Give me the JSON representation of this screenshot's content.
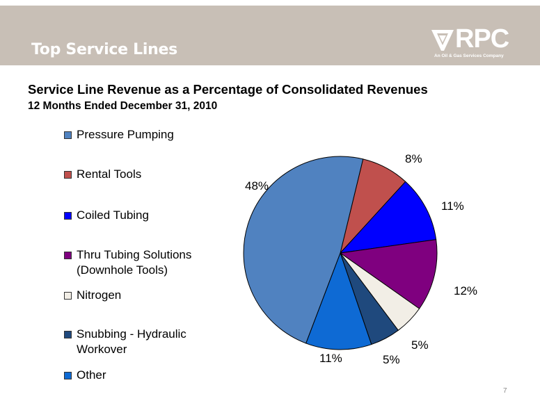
{
  "header": {
    "title": "Top Service Lines",
    "logo_text": "RPC",
    "logo_tagline": "An Oil & Gas Services Company"
  },
  "page_number": "7",
  "colors": {
    "header_bg": "#c8bfb6",
    "header_text": "#ffffff"
  },
  "chart_data": {
    "type": "pie",
    "title": "Service Line Revenue as a Percentage of Consolidated Revenues",
    "subtitle": "12 Months Ended December 31, 2010",
    "legend_position": "left",
    "slices": [
      {
        "name": "Pressure Pumping",
        "legend_line2": "",
        "value": 48,
        "label": "48%",
        "color": "#5082c0"
      },
      {
        "name": "Rental Tools",
        "legend_line2": "",
        "value": 8,
        "label": "8%",
        "color": "#c0504d"
      },
      {
        "name": "Coiled Tubing",
        "legend_line2": "",
        "value": 11,
        "label": "11%",
        "color": "#0000ff"
      },
      {
        "name": "Thru Tubing Solutions",
        "legend_line2": "(Downhole Tools)",
        "value": 12,
        "label": "12%",
        "color": "#7f007f"
      },
      {
        "name": "Nitrogen",
        "legend_line2": "",
        "value": 5,
        "label": "5%",
        "color": "#f2eee6"
      },
      {
        "name": "Snubbing - Hydraulic",
        "legend_line2": "Workover",
        "value": 5,
        "label": "5%",
        "color": "#1f497d"
      },
      {
        "name": "Other",
        "legend_line2": "",
        "value": 11,
        "label": "11%",
        "color": "#0e6ad4"
      }
    ]
  }
}
